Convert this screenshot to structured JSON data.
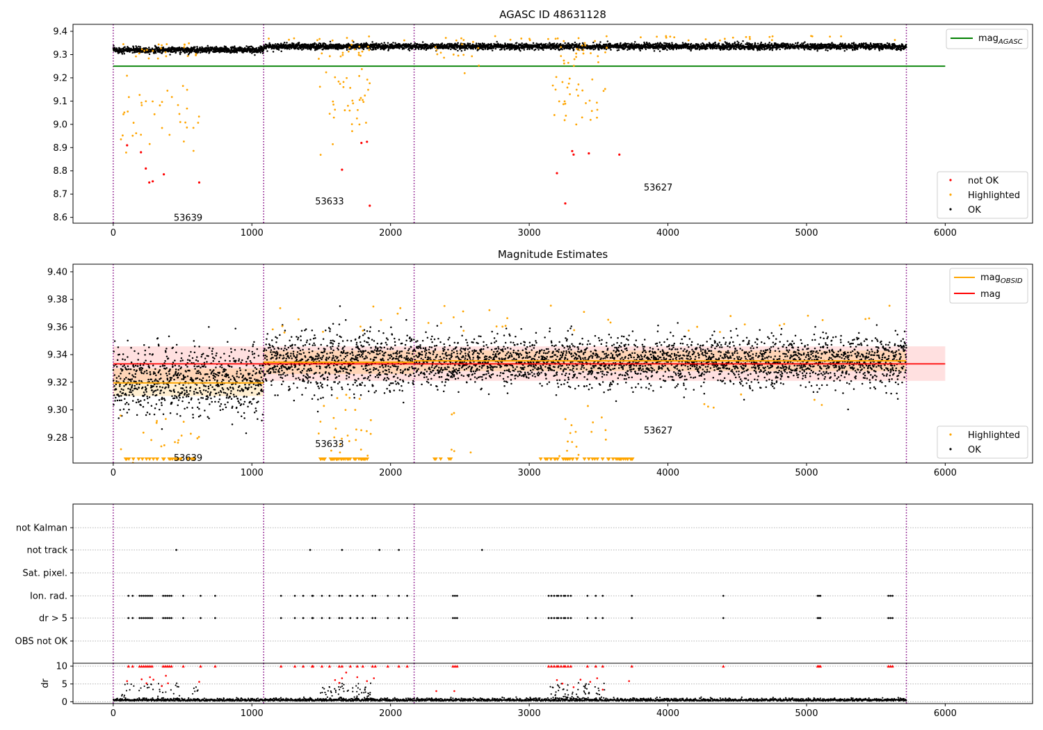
{
  "chart_data": [
    {
      "type": "scatter",
      "title": "AGASC ID 48631128",
      "xlim": [
        -290,
        6630
      ],
      "ylim": [
        8.575,
        9.43
      ],
      "xticks": [
        "0",
        "1000",
        "2000",
        "3000",
        "4000",
        "5000",
        "6000"
      ],
      "yticks": [
        "8.6",
        "8.7",
        "8.8",
        "8.9",
        "9.0",
        "9.1",
        "9.2",
        "9.3",
        "9.4"
      ],
      "obsid_boundaries": [
        0,
        1085,
        2170,
        5720
      ],
      "observations": [
        {
          "obsid": "53639",
          "x_start": 0,
          "x_end": 1085,
          "mag": 9.32,
          "label_x": 540,
          "label_y": 8.6
        },
        {
          "obsid": "53633",
          "x_start": 1085,
          "x_end": 2170,
          "mag": 9.335,
          "label_x": 1560,
          "label_y": 8.67
        },
        {
          "obsid": "53627",
          "x_start": 2170,
          "x_end": 5720,
          "mag": 9.335,
          "label_x": 3930,
          "label_y": 8.73
        }
      ],
      "lines": [
        {
          "name": "mag_AGASC",
          "label": "mag",
          "label_sub": "AGASC",
          "y": 9.25,
          "x_range": [
            0,
            6000
          ],
          "color": "#008000"
        }
      ],
      "series": [
        {
          "name": "not OK",
          "color": "#ff0000",
          "points": [
            [
              100,
              8.91
            ],
            [
              200,
              8.88
            ],
            [
              235,
              8.81
            ],
            [
              260,
              8.75
            ],
            [
              285,
              8.755
            ],
            [
              365,
              8.785
            ],
            [
              620,
              8.75
            ],
            [
              1650,
              8.805
            ],
            [
              1790,
              8.92
            ],
            [
              1830,
              8.925
            ],
            [
              1850,
              8.65
            ],
            [
              3200,
              8.79
            ],
            [
              3260,
              8.66
            ],
            [
              3310,
              8.885
            ],
            [
              3320,
              8.87
            ],
            [
              3430,
              8.875
            ],
            [
              3650,
              8.87
            ]
          ]
        },
        {
          "name": "Highlighted",
          "color": "#ffa500"
        },
        {
          "name": "OK",
          "color": "#000000"
        }
      ],
      "legend_upper": "upper right",
      "legend_lower": "lower right"
    },
    {
      "type": "scatter",
      "title": "Magnitude Estimates",
      "xlim": [
        -290,
        6630
      ],
      "ylim": [
        9.2615,
        9.4055
      ],
      "xticks": [
        "0",
        "1000",
        "2000",
        "3000",
        "4000",
        "5000",
        "6000"
      ],
      "yticks": [
        "9.28",
        "9.30",
        "9.32",
        "9.34",
        "9.36",
        "9.38",
        "9.40"
      ],
      "mag_line": {
        "name": "mag",
        "y": 9.3333,
        "x_range": [
          0,
          6000
        ],
        "color": "#ff0000"
      },
      "mag_band": [
        9.321,
        9.346
      ],
      "obsid_lines": {
        "name": "mag_OBSID",
        "label": "mag",
        "label_sub": "OBSID",
        "color": "#ffa500",
        "segments": [
          [
            0,
            1085,
            9.3195
          ],
          [
            1085,
            2170,
            9.3345
          ],
          [
            2170,
            5720,
            9.3355
          ]
        ]
      },
      "obsid_bands": [
        [
          0,
          1085,
          9.31,
          9.33
        ],
        [
          1085,
          2170,
          9.326,
          9.343
        ],
        [
          2170,
          5720,
          9.328,
          9.343
        ]
      ],
      "annotations": [
        {
          "text": "53639",
          "x": 540,
          "y": 9.2655
        },
        {
          "text": "53633",
          "x": 1560,
          "y": 9.2755
        },
        {
          "text": "53627",
          "x": 3930,
          "y": 9.2855
        }
      ],
      "series": [
        {
          "name": "Highlighted",
          "color": "#ffa500"
        },
        {
          "name": "OK",
          "color": "#000000"
        }
      ],
      "legend_upper": "upper right",
      "legend_lower": "lower right"
    },
    {
      "type": "scatter",
      "xlim": [
        -290,
        6630
      ],
      "categories": [
        "not Kalman",
        "not track",
        "Sat. pixel.",
        "Ion. rad.",
        "dr > 5",
        "OBS not OK"
      ],
      "flags": {
        "not track": [
          455,
          1420,
          1650,
          1920,
          2060,
          2660
        ],
        "Ion. rad.": [
          110,
          140,
          190,
          205,
          220,
          235,
          250,
          265,
          280,
          360,
          375,
          390,
          405,
          420,
          505,
          630,
          735,
          1210,
          1310,
          1370,
          1435,
          1440,
          1505,
          1560,
          1630,
          1650,
          1710,
          1760,
          1800,
          1870,
          1890,
          1980,
          2060,
          2120,
          2450,
          2465,
          2480,
          3140,
          3160,
          3180,
          3200,
          3210,
          3230,
          3250,
          3260,
          3280,
          3300,
          3420,
          3480,
          3530,
          3740,
          4400,
          5080,
          5090,
          5100,
          5590,
          5605,
          5620
        ],
        "dr > 5": [
          110,
          140,
          190,
          205,
          220,
          235,
          250,
          265,
          280,
          360,
          375,
          390,
          405,
          420,
          505,
          630,
          735,
          1210,
          1310,
          1370,
          1435,
          1440,
          1505,
          1560,
          1630,
          1650,
          1710,
          1760,
          1800,
          1870,
          1890,
          1980,
          2060,
          2120,
          2450,
          2465,
          2480,
          3140,
          3160,
          3180,
          3200,
          3210,
          3230,
          3250,
          3260,
          3280,
          3300,
          3420,
          3480,
          3530,
          3740,
          4400,
          5080,
          5090,
          5100,
          5590,
          5605,
          5620
        ]
      }
    },
    {
      "type": "scatter",
      "ylabel": "dr",
      "xlim": [
        -290,
        6630
      ],
      "ylim": [
        -0.5,
        10.8
      ],
      "xticks": [
        "0",
        "1000",
        "2000",
        "3000",
        "4000",
        "5000",
        "6000"
      ],
      "yticks": [
        "0",
        "5",
        "10"
      ],
      "clip_value": 10,
      "large_dr": [
        [
          100,
          5.8
        ],
        [
          205,
          6.3
        ],
        [
          240,
          5.2
        ],
        [
          265,
          6.9
        ],
        [
          290,
          6.2
        ],
        [
          350,
          4.4
        ],
        [
          380,
          7.3
        ],
        [
          395,
          5.2
        ],
        [
          620,
          5.6
        ],
        [
          1600,
          6.1
        ],
        [
          1630,
          5.3
        ],
        [
          1650,
          6.6
        ],
        [
          1680,
          8.2
        ],
        [
          1760,
          6.9
        ],
        [
          1830,
          5.8
        ],
        [
          1880,
          6.6
        ],
        [
          2330,
          3.0
        ],
        [
          2460,
          3.0
        ],
        [
          3200,
          6.1
        ],
        [
          3240,
          5.1
        ],
        [
          3320,
          4.1
        ],
        [
          3370,
          6.2
        ],
        [
          3440,
          5.6
        ],
        [
          3490,
          6.6
        ],
        [
          3530,
          3.4
        ],
        [
          3720,
          5.8
        ]
      ]
    }
  ]
}
